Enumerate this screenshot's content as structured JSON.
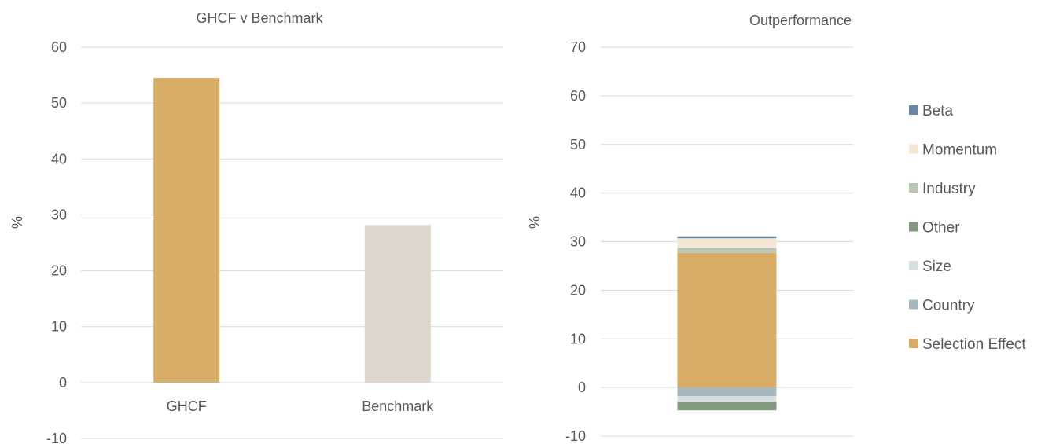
{
  "chart_data": [
    {
      "type": "bar",
      "title": "GHCF v Benchmark",
      "ylabel": "%",
      "ylim": [
        -10,
        60
      ],
      "yticks": [
        "60",
        "50",
        "40",
        "30",
        "20",
        "10",
        "0",
        "-10"
      ],
      "categories": [
        "GHCF",
        "Benchmark"
      ],
      "values": [
        54.5,
        28.2
      ],
      "colors": [
        "#d6ac67",
        "#dcd6cb"
      ],
      "grid": true
    },
    {
      "type": "bar",
      "stacked": true,
      "title": "Outperformance",
      "ylabel": "%",
      "ylim": [
        -10,
        70
      ],
      "yticks": [
        "70",
        "60",
        "50",
        "40",
        "30",
        "20",
        "10",
        "0",
        "-10"
      ],
      "categories": [
        ""
      ],
      "series": [
        {
          "name": "Selection Effect",
          "values": [
            27.7
          ],
          "color": "#d6ac67"
        },
        {
          "name": "Country",
          "values": [
            -1.8
          ],
          "color": "#a4b7bd"
        },
        {
          "name": "Size",
          "values": [
            -1.2
          ],
          "color": "#d6dde1"
        },
        {
          "name": "Other",
          "values": [
            -1.7
          ],
          "color": "#82987f"
        },
        {
          "name": "Industry",
          "values": [
            1.0
          ],
          "color": "#b9c4b5"
        },
        {
          "name": "Momentum",
          "values": [
            2.0
          ],
          "color": "#f3e6d5"
        },
        {
          "name": "Beta",
          "values": [
            0.4
          ],
          "color": "#6b87a3"
        }
      ],
      "legend_order": [
        "Beta",
        "Momentum",
        "Industry",
        "Other",
        "Size",
        "Country",
        "Selection Effect"
      ],
      "legend": "right",
      "grid": true
    }
  ]
}
